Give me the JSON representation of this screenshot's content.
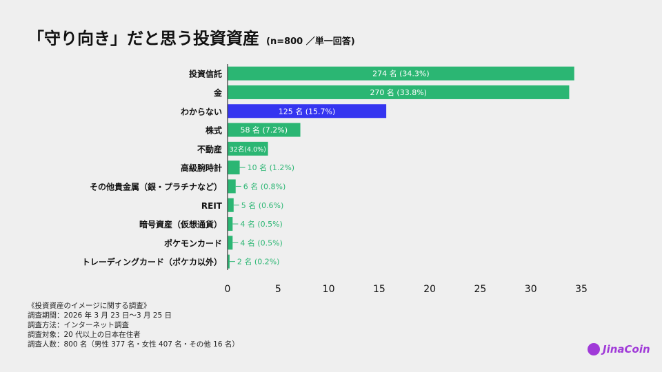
{
  "title": "「守り向き」だと思う投資資産",
  "subtitle": "(n=800 ／単一回答)",
  "colors": {
    "bar": "#2bb673",
    "highlight": "#3535f0",
    "background": "#efefef",
    "logo": "#a03ad8"
  },
  "chart_data": {
    "type": "bar",
    "orientation": "horizontal",
    "title": "「守り向き」だと思う投資資産",
    "categories": [
      "投資信託",
      "金",
      "わからない",
      "株式",
      "不動産",
      "高級腕時計",
      "その他貴金属（銀・プラチナなど）",
      "REIT",
      "暗号資産（仮想通貨）",
      "ポケモンカード",
      "トレーディングカード（ポケカ以外）"
    ],
    "values": [
      34.3,
      33.8,
      15.7,
      7.2,
      4.0,
      1.2,
      0.8,
      0.6,
      0.5,
      0.5,
      0.2
    ],
    "labels": [
      "274 名 (34.3%)",
      "270 名 (33.8%)",
      "125 名 (15.7%)",
      "58 名 (7.2%)",
      "32名(4.0%)",
      "10 名 (1.2%)",
      "6 名 (0.8%)",
      "5 名 (0.6%)",
      "4 名 (0.5%)",
      "4 名 (0.5%)",
      "2 名 (0.2%)"
    ],
    "highlight_index": 2,
    "xlim": [
      0,
      35
    ],
    "xticks": [
      "0",
      "5",
      "10",
      "15",
      "20",
      "25",
      "30",
      "35"
    ],
    "grid": false
  },
  "notes": [
    "《投資資産のイメージに関する調査》",
    "調査期間：2026 年 3 月 23 日〜3 月 25 日",
    "調査方法：インターネット調査",
    "調査対象：20 代以上の日本在住者",
    "調査人数：800 名（男性 377 名・女性 407 名・その他 16 名）"
  ],
  "logo": "JinaCoin"
}
